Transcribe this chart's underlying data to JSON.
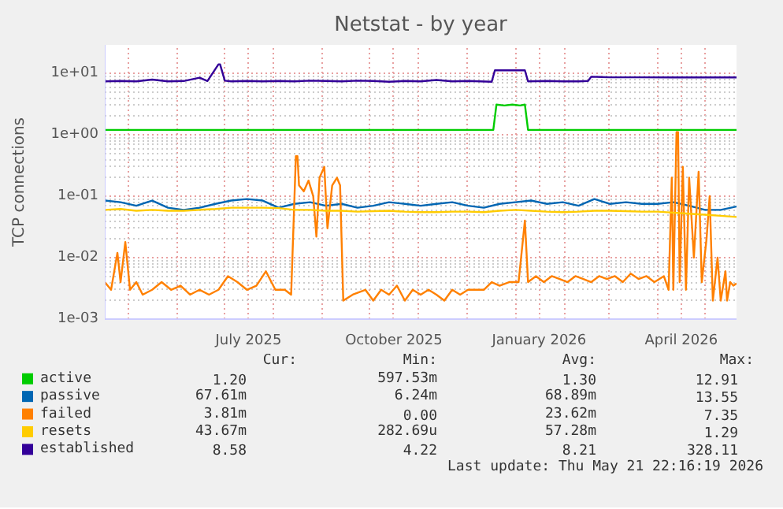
{
  "chart_data": {
    "type": "line",
    "title": "Netstat - by year",
    "ylabel": "TCP connections",
    "log": true,
    "grid": true,
    "legend": "bottom",
    "line_style": "solid",
    "xlim": [
      "2025-04-16",
      "2026-05-21"
    ],
    "xticks": [
      {
        "value": "2025-05-01",
        "label": null
      },
      {
        "value": "2025-06-01",
        "label": null
      },
      {
        "value": "2025-07-01",
        "label": null
      },
      {
        "value": "2025-07-16",
        "label": "July 2025"
      },
      {
        "value": "2025-08-01",
        "label": null
      },
      {
        "value": "2025-09-01",
        "label": null
      },
      {
        "value": "2025-10-01",
        "label": null
      },
      {
        "value": "2025-10-16",
        "label": "October 2025"
      },
      {
        "value": "2025-11-01",
        "label": null
      },
      {
        "value": "2025-12-01",
        "label": null
      },
      {
        "value": "2026-01-01",
        "label": null
      },
      {
        "value": "2026-01-16",
        "label": "January 2026"
      },
      {
        "value": "2026-02-01",
        "label": null
      },
      {
        "value": "2026-03-01",
        "label": null
      },
      {
        "value": "2026-04-01",
        "label": null
      },
      {
        "value": "2026-04-16",
        "label": "April 2026"
      },
      {
        "value": "2026-05-01",
        "label": null
      }
    ],
    "ylim": [
      0.001,
      29
    ],
    "yticks": [
      {
        "value": 0.001,
        "label": "1e-03"
      },
      {
        "value": 0.01,
        "label": "1e-02"
      },
      {
        "value": 0.1,
        "label": "1e-01"
      },
      {
        "value": 1,
        "label": "1e+00"
      },
      {
        "value": 10,
        "label": "1e+01"
      }
    ],
    "series": [
      {
        "name": "active",
        "color": "#00cc00",
        "x": [
          "2025-04-16",
          "2025-08-01",
          "2025-12-18",
          "2025-12-20",
          "2025-12-25",
          "2025-12-30",
          "2026-01-04",
          "2026-01-07",
          "2026-01-09",
          "2026-05-21"
        ],
        "values": [
          1.2,
          1.2,
          1.2,
          3.1,
          3.0,
          3.1,
          3.0,
          3.1,
          1.2,
          1.2
        ]
      },
      {
        "name": "passive",
        "color": "#0066b3",
        "x": [
          "2025-04-16",
          "2025-04-26",
          "2025-05-06",
          "2025-05-16",
          "2025-05-26",
          "2025-06-05",
          "2025-06-15",
          "2025-06-25",
          "2025-07-05",
          "2025-07-15",
          "2025-07-25",
          "2025-08-04",
          "2025-08-14",
          "2025-08-24",
          "2025-09-03",
          "2025-09-13",
          "2025-09-23",
          "2025-10-03",
          "2025-10-13",
          "2025-10-23",
          "2025-11-02",
          "2025-11-12",
          "2025-11-22",
          "2025-12-02",
          "2025-12-12",
          "2025-12-22",
          "2026-01-01",
          "2026-01-11",
          "2026-01-21",
          "2026-01-31",
          "2026-02-10",
          "2026-02-20",
          "2026-03-02",
          "2026-03-12",
          "2026-03-22",
          "2026-04-01",
          "2026-04-11",
          "2026-04-21",
          "2026-05-01",
          "2026-05-11",
          "2026-05-21"
        ],
        "values": [
          0.085,
          0.08,
          0.07,
          0.085,
          0.065,
          0.06,
          0.065,
          0.075,
          0.085,
          0.09,
          0.085,
          0.065,
          0.075,
          0.08,
          0.07,
          0.075,
          0.065,
          0.07,
          0.08,
          0.075,
          0.07,
          0.075,
          0.08,
          0.07,
          0.065,
          0.075,
          0.08,
          0.085,
          0.075,
          0.08,
          0.07,
          0.09,
          0.075,
          0.08,
          0.075,
          0.075,
          0.08,
          0.07,
          0.06,
          0.06,
          0.068
        ]
      },
      {
        "name": "failed",
        "color": "#ff8000",
        "x": [
          "2025-04-16",
          "2025-04-20",
          "2025-04-24",
          "2025-04-26",
          "2025-04-29",
          "2025-05-02",
          "2025-05-06",
          "2025-05-10",
          "2025-05-16",
          "2025-05-22",
          "2025-05-28",
          "2025-06-03",
          "2025-06-09",
          "2025-06-15",
          "2025-06-21",
          "2025-06-27",
          "2025-07-03",
          "2025-07-09",
          "2025-07-15",
          "2025-07-21",
          "2025-07-27",
          "2025-08-02",
          "2025-08-08",
          "2025-08-12",
          "2025-08-15",
          "2025-08-16",
          "2025-08-17",
          "2025-08-20",
          "2025-08-23",
          "2025-08-26",
          "2025-08-28",
          "2025-08-30",
          "2025-09-02",
          "2025-09-04",
          "2025-09-07",
          "2025-09-10",
          "2025-09-12",
          "2025-09-14",
          "2025-09-20",
          "2025-09-28",
          "2025-10-03",
          "2025-10-08",
          "2025-10-13",
          "2025-10-18",
          "2025-10-23",
          "2025-10-28",
          "2025-11-02",
          "2025-11-07",
          "2025-11-12",
          "2025-11-17",
          "2025-11-22",
          "2025-11-27",
          "2025-12-02",
          "2025-12-07",
          "2025-12-12",
          "2025-12-17",
          "2025-12-22",
          "2025-12-28",
          "2026-01-03",
          "2026-01-07",
          "2026-01-09",
          "2026-01-14",
          "2026-01-19",
          "2026-01-24",
          "2026-01-29",
          "2026-02-03",
          "2026-02-08",
          "2026-02-13",
          "2026-02-18",
          "2026-02-23",
          "2026-02-28",
          "2026-03-05",
          "2026-03-10",
          "2026-03-15",
          "2026-03-20",
          "2026-03-25",
          "2026-03-30",
          "2026-04-05",
          "2026-04-08",
          "2026-04-10",
          "2026-04-11",
          "2026-04-13",
          "2026-04-14",
          "2026-04-15",
          "2026-04-17",
          "2026-04-19",
          "2026-04-21",
          "2026-04-24",
          "2026-04-27",
          "2026-04-29",
          "2026-05-02",
          "2026-05-04",
          "2026-05-06",
          "2026-05-09",
          "2026-05-11",
          "2026-05-14",
          "2026-05-15",
          "2026-05-17",
          "2026-05-19",
          "2026-05-21"
        ],
        "values": [
          0.004,
          0.003,
          0.012,
          0.004,
          0.018,
          0.003,
          0.004,
          0.0025,
          0.003,
          0.004,
          0.003,
          0.0035,
          0.0025,
          0.003,
          0.0025,
          0.003,
          0.005,
          0.004,
          0.003,
          0.0035,
          0.006,
          0.003,
          0.003,
          0.0025,
          0.45,
          0.45,
          0.15,
          0.12,
          0.18,
          0.1,
          0.022,
          0.2,
          0.3,
          0.03,
          0.15,
          0.2,
          0.15,
          0.002,
          0.0025,
          0.003,
          0.002,
          0.003,
          0.0025,
          0.0035,
          0.002,
          0.003,
          0.0025,
          0.003,
          0.0025,
          0.002,
          0.003,
          0.0025,
          0.003,
          0.003,
          0.003,
          0.004,
          0.0035,
          0.004,
          0.004,
          0.04,
          0.004,
          0.005,
          0.004,
          0.005,
          0.0045,
          0.004,
          0.005,
          0.0045,
          0.004,
          0.005,
          0.0045,
          0.005,
          0.004,
          0.0055,
          0.0045,
          0.005,
          0.004,
          0.005,
          0.003,
          0.2,
          0.003,
          1.1,
          1.1,
          0.004,
          0.3,
          0.003,
          0.2,
          0.01,
          0.25,
          0.004,
          0.02,
          0.1,
          0.002,
          0.01,
          0.002,
          0.006,
          0.002,
          0.004,
          0.0035,
          0.0038
        ]
      },
      {
        "name": "resets",
        "color": "#ffcc00",
        "x": [
          "2025-04-16",
          "2025-04-26",
          "2025-05-06",
          "2025-05-16",
          "2025-05-26",
          "2025-06-05",
          "2025-06-15",
          "2025-06-25",
          "2025-07-05",
          "2025-07-15",
          "2025-07-25",
          "2025-08-04",
          "2025-08-14",
          "2025-08-24",
          "2025-09-03",
          "2025-09-13",
          "2025-09-23",
          "2025-10-03",
          "2025-10-13",
          "2025-10-23",
          "2025-11-02",
          "2025-11-12",
          "2025-11-22",
          "2025-12-02",
          "2025-12-12",
          "2025-12-22",
          "2026-01-01",
          "2026-01-11",
          "2026-01-21",
          "2026-01-31",
          "2026-02-10",
          "2026-02-20",
          "2026-03-02",
          "2026-03-12",
          "2026-03-22",
          "2026-04-01",
          "2026-04-11",
          "2026-04-21",
          "2026-05-01",
          "2026-05-11",
          "2026-05-21"
        ],
        "values": [
          0.06,
          0.062,
          0.058,
          0.06,
          0.058,
          0.058,
          0.06,
          0.062,
          0.065,
          0.065,
          0.065,
          0.064,
          0.06,
          0.06,
          0.058,
          0.058,
          0.056,
          0.057,
          0.058,
          0.056,
          0.055,
          0.055,
          0.056,
          0.056,
          0.055,
          0.058,
          0.06,
          0.058,
          0.056,
          0.055,
          0.056,
          0.058,
          0.058,
          0.057,
          0.056,
          0.056,
          0.054,
          0.052,
          0.05,
          0.048,
          0.046
        ]
      },
      {
        "name": "established",
        "color": "#330099",
        "x": [
          "2025-04-16",
          "2025-04-26",
          "2025-05-06",
          "2025-05-16",
          "2025-05-26",
          "2025-06-05",
          "2025-06-15",
          "2025-06-20",
          "2025-06-27",
          "2025-06-28",
          "2025-07-01",
          "2025-07-05",
          "2025-07-15",
          "2025-07-25",
          "2025-08-04",
          "2025-08-14",
          "2025-08-24",
          "2025-09-03",
          "2025-09-13",
          "2025-09-23",
          "2025-10-03",
          "2025-10-13",
          "2025-10-23",
          "2025-11-02",
          "2025-11-12",
          "2025-11-22",
          "2025-12-02",
          "2025-12-17",
          "2025-12-19",
          "2026-01-07",
          "2026-01-09",
          "2026-01-21",
          "2026-01-31",
          "2026-02-10",
          "2026-02-16",
          "2026-02-18",
          "2026-03-02",
          "2026-03-22",
          "2026-04-11",
          "2026-05-01",
          "2026-05-21"
        ],
        "values": [
          7.4,
          7.5,
          7.4,
          7.9,
          7.4,
          7.5,
          8.5,
          7.5,
          14,
          14,
          7.6,
          7.4,
          7.5,
          7.4,
          7.5,
          7.4,
          7.6,
          7.5,
          7.4,
          7.6,
          7.5,
          7.3,
          7.5,
          7.4,
          7.8,
          7.4,
          7.5,
          7.3,
          11.2,
          11.2,
          7.4,
          7.5,
          7.4,
          7.4,
          7.5,
          8.8,
          8.6,
          8.6,
          8.58,
          8.58,
          8.58
        ]
      }
    ],
    "annotations": [
      "Cur:",
      "Min:",
      "Avg:",
      "Max:",
      "1.20",
      "597.53m",
      "1.30",
      "12.91",
      "67.61m",
      "6.24m",
      "68.89m",
      "13.55",
      "3.81m",
      "0.00",
      "23.62m",
      "7.35",
      "43.67m",
      "282.69u",
      "57.28m",
      "1.29",
      "8.58",
      "4.22",
      "8.21",
      "328.11",
      "Last update: Thu May 21 22:16:19 2026"
    ]
  }
}
